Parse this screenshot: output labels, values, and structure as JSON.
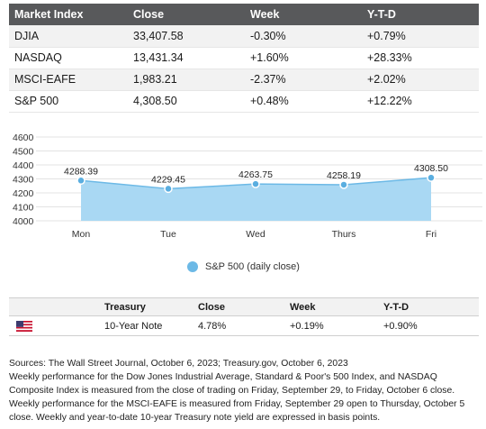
{
  "market_table": {
    "headers": [
      "Market Index",
      "Close",
      "Week",
      "Y-T-D"
    ],
    "rows": [
      [
        "DJIA",
        "33,407.58",
        "-0.30%",
        "+0.79%"
      ],
      [
        "NASDAQ",
        "13,431.34",
        "+1.60%",
        "+28.33%"
      ],
      [
        "MSCI-EAFE",
        "1,983.21",
        "-2.37%",
        "+2.02%"
      ],
      [
        "S&P 500",
        "4,308.50",
        "+0.48%",
        "+12.22%"
      ]
    ]
  },
  "chart_data": {
    "type": "area",
    "categories": [
      "Mon",
      "Tue",
      "Wed",
      "Thurs",
      "Fri"
    ],
    "series": [
      {
        "name": "S&P 500 (daily close)",
        "values": [
          4288.39,
          4229.45,
          4263.75,
          4258.19,
          4308.5
        ]
      }
    ],
    "data_labels": [
      "4288.39",
      "4229.45",
      "4263.75",
      "4258.19",
      "4308.50"
    ],
    "y_ticks": [
      4000,
      4100,
      4200,
      4300,
      4400,
      4500,
      4600
    ],
    "ylim": [
      4000,
      4600
    ],
    "grid": true,
    "legend_position": "bottom",
    "colors": {
      "fill": "#a9d8f3",
      "line": "#6cb9e6",
      "point": "#5aaee0"
    }
  },
  "treasury_table": {
    "headers": [
      "",
      "Treasury",
      "Close",
      "Week",
      "Y-T-D"
    ],
    "rows": [
      {
        "flag": "us-flag-icon",
        "name": "10-Year Note",
        "close": "4.78%",
        "week": "+0.19%",
        "ytd": "+0.90%"
      }
    ]
  },
  "footnotes": {
    "sources": "Sources: The Wall Street Journal, October 6, 2023; Treasury.gov, October 6, 2023",
    "note1": "Weekly performance for the Dow Jones Industrial Average, Standard & Poor's 500 Index, and NASDAQ Composite Index is measured from the close of trading on Friday, September 29, to Friday, October 6 close.",
    "note2": "Weekly performance for the MSCI-EAFE is measured from Friday, September 29 open to Thursday, October 5 close. Weekly and year-to-date 10-year Treasury note yield are expressed in basis points."
  }
}
